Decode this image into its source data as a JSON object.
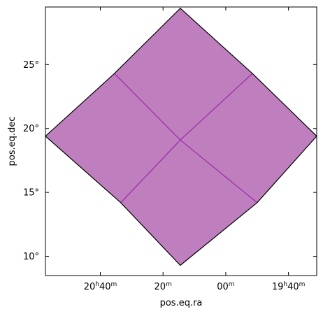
{
  "chart_data": {
    "type": "area",
    "title": "",
    "xlabel": "pos.eq.ra",
    "ylabel": "pos.eq.dec",
    "grid": false,
    "xlim_ra_minutes": [
      1257.5,
      1171
    ],
    "ylim_deg": [
      8.5,
      29.5
    ],
    "x_ticks": [
      {
        "ra_minutes": 1240,
        "hours": "20",
        "minutes": "40",
        "sup_h": "h",
        "sup_m": "m"
      },
      {
        "ra_minutes": 1220,
        "hours": "",
        "minutes": "20",
        "sup_h": "",
        "sup_m": "m"
      },
      {
        "ra_minutes": 1200,
        "hours": "",
        "minutes": "00",
        "sup_h": "",
        "sup_m": "m"
      },
      {
        "ra_minutes": 1180,
        "hours": "19",
        "minutes": "40",
        "sup_h": "h",
        "sup_m": "m"
      }
    ],
    "y_ticks": [
      {
        "dec": 10,
        "label": "10°"
      },
      {
        "dec": 15,
        "label": "15°"
      },
      {
        "dec": 20,
        "label": "20°"
      },
      {
        "dec": 25,
        "label": "25°"
      }
    ],
    "region": {
      "fill": "#bf7fbf",
      "outline": "#000000",
      "grid_color": "#9b30a8",
      "outer": [
        [
          1214.5,
          29.4
        ],
        [
          1191.5,
          24.3
        ],
        [
          1171,
          19.4
        ],
        [
          1190,
          14.2
        ],
        [
          1214.5,
          9.3
        ],
        [
          1233.5,
          14.2
        ],
        [
          1257.5,
          19.4
        ],
        [
          1235.5,
          24.3
        ]
      ],
      "inner_lines": [
        [
          [
            1235.5,
            24.3
          ],
          [
            1214.5,
            19.1
          ],
          [
            1190,
            14.2
          ]
        ],
        [
          [
            1191.5,
            24.3
          ],
          [
            1214.5,
            19.1
          ],
          [
            1233.5,
            14.2
          ]
        ]
      ]
    }
  }
}
